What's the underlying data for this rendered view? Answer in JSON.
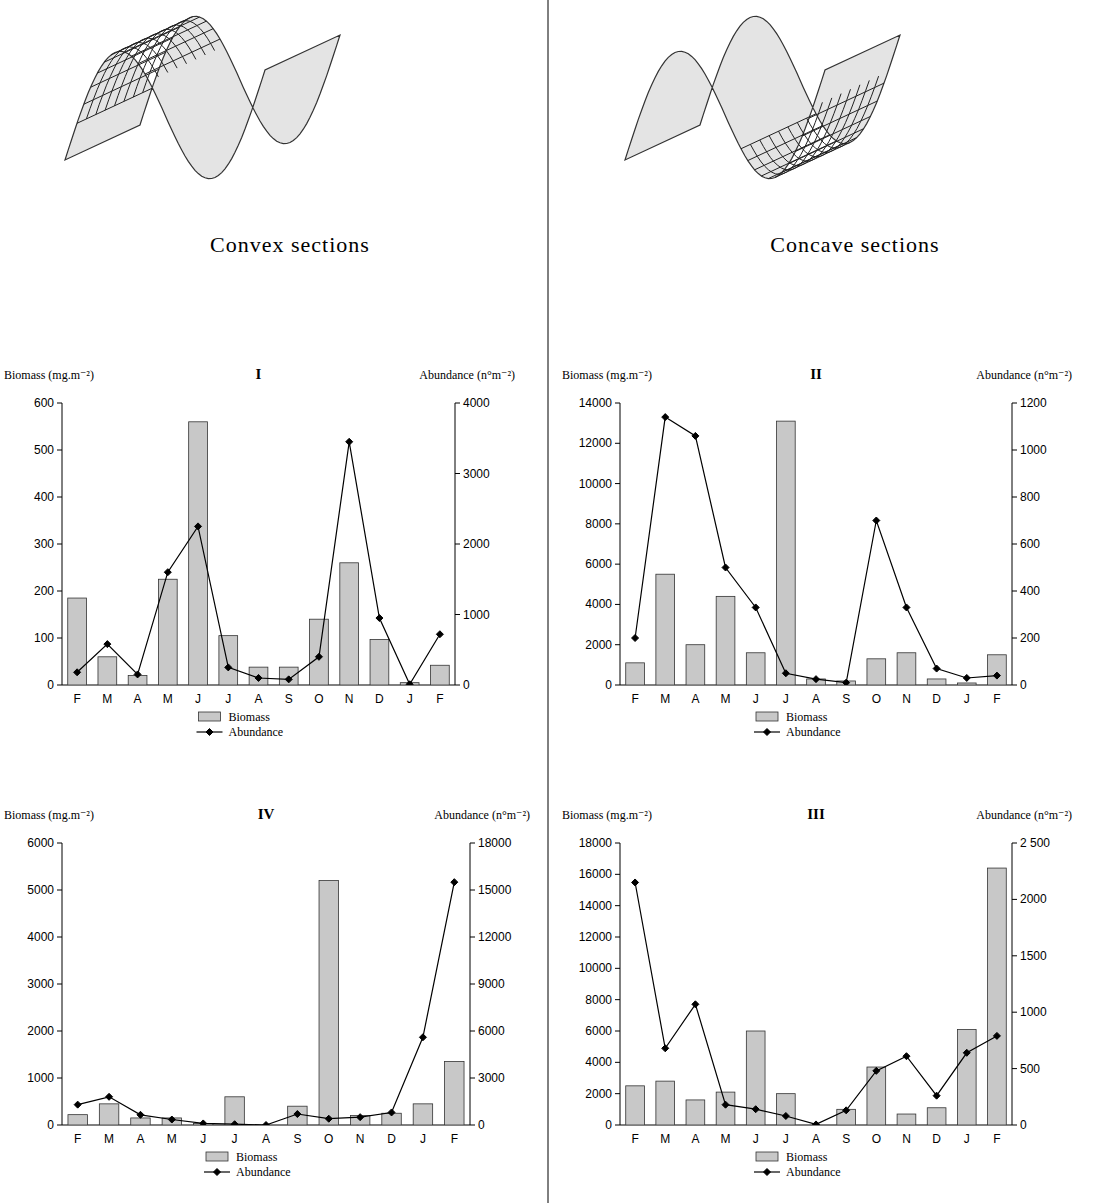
{
  "headers": {
    "convex": "Convex sections",
    "concave": "Concave sections"
  },
  "chart_data": [
    {
      "type": "bar",
      "title": "I",
      "ylabel": "Biomass (mg.m⁻²)",
      "y2label": "Abundance (n°m⁻²)",
      "categories": [
        "F",
        "M",
        "A",
        "M",
        "J",
        "J",
        "A",
        "S",
        "O",
        "N",
        "D",
        "J",
        "F"
      ],
      "ylim": [
        0,
        600
      ],
      "yticks": [
        0,
        100,
        200,
        300,
        400,
        500,
        600
      ],
      "y2lim": [
        0,
        4000
      ],
      "y2ticks": [
        0,
        1000,
        2000,
        3000,
        4000
      ],
      "grid": false,
      "legend": "bottom",
      "series": [
        {
          "name": "Biomass",
          "type": "bar",
          "color": "#c8c8c8",
          "values": [
            185,
            60,
            20,
            225,
            560,
            105,
            38,
            38,
            140,
            260,
            97,
            5,
            42
          ]
        },
        {
          "name": "Abundance",
          "type": "line",
          "axis": "y2",
          "color": "#000000",
          "marker": "diamond",
          "values": [
            180,
            580,
            150,
            1600,
            2250,
            250,
            100,
            80,
            400,
            3450,
            950,
            10,
            720
          ]
        }
      ]
    },
    {
      "type": "bar",
      "title": "II",
      "ylabel": "Biomass (mg.m⁻²)",
      "y2label": "Abundance (n°m⁻²)",
      "categories": [
        "F",
        "M",
        "A",
        "M",
        "J",
        "J",
        "A",
        "S",
        "O",
        "N",
        "D",
        "J",
        "F"
      ],
      "ylim": [
        0,
        14000
      ],
      "yticks": [
        0,
        2000,
        4000,
        6000,
        8000,
        10000,
        12000,
        14000
      ],
      "y2lim": [
        0,
        1200
      ],
      "y2ticks": [
        0,
        200,
        400,
        600,
        800,
        1000,
        1200
      ],
      "grid": false,
      "legend": "bottom",
      "series": [
        {
          "name": "Biomass",
          "type": "bar",
          "color": "#c8c8c8",
          "values": [
            1100,
            5500,
            2000,
            4400,
            1600,
            13100,
            300,
            200,
            1300,
            1600,
            300,
            100,
            1500
          ]
        },
        {
          "name": "Abundance",
          "type": "line",
          "axis": "y2",
          "color": "#000000",
          "marker": "diamond",
          "values": [
            200,
            1140,
            1060,
            500,
            330,
            50,
            25,
            10,
            700,
            330,
            70,
            30,
            40
          ]
        }
      ]
    },
    {
      "type": "bar",
      "title": "III",
      "ylabel": "Biomass (mg.m⁻²)",
      "y2label": "Abundance (n°m⁻²)",
      "categories": [
        "F",
        "M",
        "A",
        "M",
        "J",
        "J",
        "A",
        "S",
        "O",
        "N",
        "D",
        "J",
        "F"
      ],
      "ylim": [
        0,
        18000
      ],
      "yticks": [
        0,
        2000,
        4000,
        6000,
        8000,
        10000,
        12000,
        14000,
        16000,
        18000
      ],
      "y2lim": [
        0,
        2500
      ],
      "y2ticks": [
        0,
        500,
        1000,
        1500,
        2000,
        {
          "value": 2500,
          "label": "2 500"
        }
      ],
      "grid": false,
      "legend": "bottom",
      "series": [
        {
          "name": "Biomass",
          "type": "bar",
          "color": "#c8c8c8",
          "values": [
            2500,
            2800,
            1600,
            2100,
            6000,
            2000,
            0,
            1000,
            3700,
            700,
            1100,
            6100,
            16400
          ]
        },
        {
          "name": "Abundance",
          "type": "line",
          "axis": "y2",
          "color": "#000000",
          "marker": "diamond",
          "values": [
            2150,
            680,
            1070,
            180,
            140,
            80,
            5,
            130,
            480,
            610,
            260,
            640,
            790
          ]
        }
      ]
    },
    {
      "type": "bar",
      "title": "IV",
      "ylabel": "Biomass (mg.m⁻²)",
      "y2label": "Abundance (n°m⁻²)",
      "categories": [
        "F",
        "M",
        "A",
        "M",
        "J",
        "J",
        "A",
        "S",
        "O",
        "N",
        "D",
        "J",
        "F"
      ],
      "ylim": [
        0,
        6000
      ],
      "yticks": [
        0,
        1000,
        2000,
        3000,
        4000,
        5000,
        6000
      ],
      "y2lim": [
        0,
        18000
      ],
      "y2ticks": [
        0,
        3000,
        6000,
        9000,
        12000,
        15000,
        18000
      ],
      "grid": false,
      "legend": "bottom",
      "series": [
        {
          "name": "Biomass",
          "type": "bar",
          "color": "#c8c8c8",
          "values": [
            220,
            450,
            150,
            150,
            30,
            600,
            0,
            400,
            5200,
            200,
            250,
            450,
            1350
          ]
        },
        {
          "name": "Abundance",
          "type": "line",
          "axis": "y2",
          "color": "#000000",
          "marker": "diamond",
          "values": [
            1300,
            1800,
            650,
            350,
            100,
            50,
            0,
            700,
            400,
            500,
            800,
            5600,
            15500
          ]
        }
      ]
    }
  ]
}
